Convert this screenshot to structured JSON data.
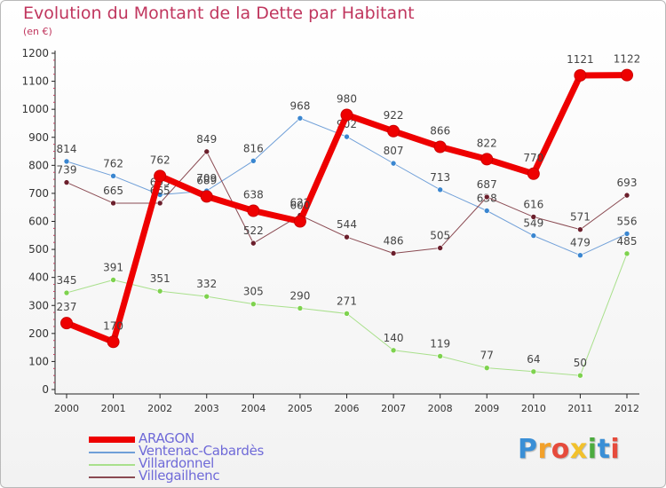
{
  "chart_data": {
    "type": "line",
    "title": "Evolution du Montant de la Dette par Habitant",
    "unit": "(en €)",
    "x": [
      2000,
      2001,
      2002,
      2003,
      2004,
      2005,
      2006,
      2007,
      2008,
      2009,
      2010,
      2011,
      2012
    ],
    "ylim": [
      0,
      1200
    ],
    "yticks": [
      0,
      100,
      200,
      300,
      400,
      500,
      600,
      700,
      800,
      900,
      1000,
      1100,
      1200
    ],
    "grid": false,
    "legend_position": "bottom-left",
    "series": [
      {
        "name": "Ventenac-Cabardès",
        "color": "#6f9fd8",
        "marker": "#3a86d0",
        "width": 1,
        "values": [
          814,
          762,
          695,
          709,
          816,
          968,
          902,
          807,
          713,
          638,
          549,
          479,
          556
        ]
      },
      {
        "name": "Villardonnel",
        "color": "#a9e08c",
        "marker": "#7ed24e",
        "width": 1,
        "values": [
          345,
          391,
          351,
          332,
          305,
          290,
          271,
          140,
          119,
          77,
          64,
          50,
          485
        ]
      },
      {
        "name": "Villegailhenc",
        "color": "#8a4a52",
        "marker": "#6b1f2c",
        "width": 1,
        "values": [
          739,
          665,
          665,
          849,
          522,
          622,
          544,
          486,
          505,
          687,
          616,
          571,
          693
        ]
      },
      {
        "name": "ARAGON",
        "color": "#ee0000",
        "marker": "#ee0000",
        "width": 7,
        "values": [
          237,
          170,
          762,
          689,
          638,
          600,
          980,
          922,
          866,
          822,
          770,
          1121,
          1122
        ]
      }
    ],
    "legend_order": [
      "ARAGON",
      "Ventenac-Cabardès",
      "Villardonnel",
      "Villegailhenc"
    ]
  },
  "logo": {
    "letters": [
      "P",
      "r",
      "o",
      "x",
      "i",
      "t",
      "i"
    ],
    "colors": [
      "#3a8fd6",
      "#f2a12b",
      "#e64b3c",
      "#f2c12b",
      "#4cab3f",
      "#3a8fd6",
      "#e64b3c"
    ]
  }
}
